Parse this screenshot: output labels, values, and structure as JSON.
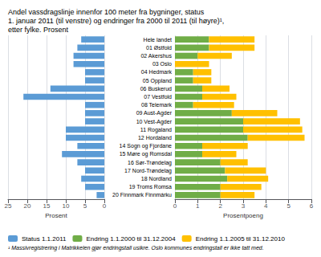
{
  "chart_data": [
    {
      "type": "bar",
      "orientation": "horizontal",
      "title": "Andel vassdragslinje innenfor 100 meter fra bygninger, status\n1. januar 2011 (til venstre) og endringer fra 2000 til 2011 (til høyre)¹,\netter fylke. Prosent",
      "annotations": [
        "¹ Massivregistrering i Matrikkelen gjør endringstall usikre. Oslo kommunes endringstall er ikke tatt med."
      ],
      "categories": [
        "Hele landet",
        "01 Østfold",
        "02 Akershus",
        "03 Oslo",
        "04 Hedmark",
        "05 Oppland",
        "06 Buskerud",
        "07 Vestfold",
        "08 Telemark",
        "09 Aust-Agder",
        "10 Vest-Agder",
        "11 Rogaland",
        "12 Hordaland",
        "14 Sogn og Fjordane",
        "15 Møre og Romsdal",
        "16 Sør-Trøndelag",
        "17 Nord-Trøndelag",
        "18 Nordland",
        "19 Troms Romsa",
        "20 Finnmark Finnmárku"
      ],
      "series": [
        {
          "name": "Status 1.1.2011",
          "color": "#5B9BD5",
          "values": [
            6,
            7,
            8,
            8,
            5,
            5,
            14,
            21,
            5,
            5,
            5,
            10,
            10,
            7,
            11,
            7,
            5,
            6,
            5,
            2
          ]
        }
      ],
      "xlabel": "Prosent",
      "xlim": [
        25,
        0
      ],
      "xticks": [
        0,
        5,
        10,
        15,
        20,
        25
      ],
      "grid": true,
      "tick_labels": "x",
      "legend": "lower left"
    },
    {
      "type": "bar",
      "orientation": "horizontal",
      "stacked": true,
      "categories": [
        "Hele landet",
        "01 Østfold",
        "02 Akershus",
        "03 Oslo",
        "04 Hedmark",
        "05 Oppland",
        "06 Buskerud",
        "07 Vestfold",
        "08 Telemark",
        "09 Aust-Agder",
        "10 Vest-Agder",
        "11 Rogaland",
        "12 Hordaland",
        "14 Sogn og Fjordane",
        "15 Møre og Romsdal",
        "16 Sør-Trøndelag",
        "17 Nord-Trøndelag",
        "18 Nordland",
        "19 Troms Romsa",
        "20 Finnmark Finnmárku"
      ],
      "series": [
        {
          "name": "Endring 1.1.2000 til 31.12.2004",
          "color": "#70AD47",
          "values": [
            1.5,
            1.5,
            1.0,
            0.0,
            0.8,
            0.8,
            1.2,
            1.2,
            0.8,
            2.5,
            3.0,
            3.0,
            3.2,
            1.2,
            1.2,
            2.0,
            2.2,
            2.3,
            2.0,
            2.0
          ]
        },
        {
          "name": "Endring 1.1.2005 til 31.12.2010",
          "color": "#FFC000",
          "values": [
            2.0,
            2.0,
            1.5,
            1.5,
            0.8,
            0.8,
            1.2,
            1.5,
            1.8,
            2.0,
            2.5,
            2.6,
            2.5,
            2.0,
            1.5,
            1.2,
            1.8,
            1.8,
            1.8,
            1.5
          ]
        }
      ],
      "xlabel": "Prosentpoeng",
      "xlim": [
        0,
        6
      ],
      "xticks": [
        0,
        1,
        2,
        3,
        4,
        5,
        6
      ],
      "grid": true,
      "legend": "lower left"
    }
  ]
}
